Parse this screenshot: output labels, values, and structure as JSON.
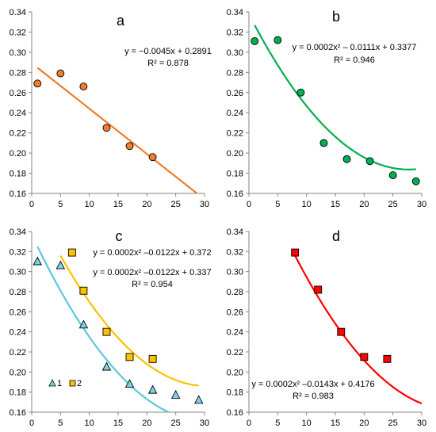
{
  "chart_data": [
    {
      "type": "scatter",
      "panel_label": "a",
      "xlim": [
        0,
        30
      ],
      "ylim": [
        0.16,
        0.34
      ],
      "x_ticks": [
        "0",
        "5",
        "10",
        "15",
        "20",
        "25",
        "30"
      ],
      "y_ticks": [
        "0.16",
        "0.18",
        "0.20",
        "0.22",
        "0.24",
        "0.26",
        "0.28",
        "0.30",
        "0.32",
        "0.34"
      ],
      "grid": false,
      "series": [
        {
          "marker": "circle",
          "color": "#ED7D31",
          "points": [
            [
              1,
              0.269
            ],
            [
              5,
              0.279
            ],
            [
              9,
              0.266
            ],
            [
              13,
              0.225
            ],
            [
              17,
              0.207
            ],
            [
              21,
              0.196
            ]
          ],
          "fit": {
            "coeffs": [
              0,
              -0.0045,
              0.2891
            ],
            "x_range": [
              1,
              29
            ],
            "color": "#ED7D31"
          }
        }
      ],
      "annotations": [
        "y = −0.0045x + 0.2891",
        "R² = 0.878"
      ]
    },
    {
      "type": "scatter",
      "panel_label": "b",
      "xlim": [
        0,
        30
      ],
      "ylim": [
        0.16,
        0.34
      ],
      "x_ticks": [
        "0",
        "5",
        "10",
        "15",
        "20",
        "25",
        "30"
      ],
      "y_ticks": [
        "0.16",
        "0.18",
        "0.20",
        "0.22",
        "0.24",
        "0.26",
        "0.28",
        "0.30",
        "0.32",
        "0.34"
      ],
      "grid": false,
      "series": [
        {
          "marker": "circle",
          "color": "#00B050",
          "points": [
            [
              1,
              0.311
            ],
            [
              5,
              0.312
            ],
            [
              9,
              0.26
            ],
            [
              13,
              0.21
            ],
            [
              17,
              0.194
            ],
            [
              21,
              0.192
            ],
            [
              25,
              0.178
            ],
            [
              29,
              0.172
            ]
          ],
          "fit": {
            "coeffs": [
              0.0002,
              -0.0111,
              0.3377
            ],
            "x_range": [
              1,
              29
            ],
            "color": "#00B050"
          }
        }
      ],
      "annotations": [
        "y = 0.0002x² – 0.0111x + 0.3377",
        "R² = 0.946"
      ]
    },
    {
      "type": "scatter",
      "panel_label": "c",
      "xlim": [
        0,
        30
      ],
      "ylim": [
        0.16,
        0.34
      ],
      "x_ticks": [
        "0",
        "5",
        "10",
        "15",
        "20",
        "25",
        "30"
      ],
      "y_ticks": [
        "0.16",
        "0.18",
        "0.20",
        "0.22",
        "0.24",
        "0.26",
        "0.28",
        "0.30",
        "0.32",
        "0.34"
      ],
      "grid": false,
      "legend": "bottom-left",
      "series": [
        {
          "name": "1",
          "marker": "triangle",
          "color": "#7FD3E6",
          "points": [
            [
              1,
              0.31
            ],
            [
              5,
              0.306
            ],
            [
              9,
              0.247
            ],
            [
              13,
              0.205
            ],
            [
              17,
              0.188
            ],
            [
              21,
              0.182
            ],
            [
              25,
              0.177
            ],
            [
              29,
              0.172
            ]
          ],
          "fit": {
            "coeffs": [
              0.0002,
              -0.0122,
              0.337
            ],
            "x_range": [
              1,
              29
            ],
            "color": "#5BC8DB"
          }
        },
        {
          "name": "2",
          "marker": "square",
          "color": "#FFC000",
          "points": [
            [
              7,
              0.319
            ],
            [
              9,
              0.281
            ],
            [
              13,
              0.24
            ],
            [
              17,
              0.215
            ],
            [
              21,
              0.213
            ]
          ],
          "fit": {
            "coeffs": [
              0.0002,
              -0.0122,
              0.372
            ],
            "x_range": [
              5,
              29
            ],
            "color": "#FFC000"
          }
        }
      ],
      "annotations": [
        "y = 0.0002x² –0.0122x + 0.372",
        "y = 0.0002x² –0.0122x + 0.337",
        "R² = 0.954"
      ]
    },
    {
      "type": "scatter",
      "panel_label": "d",
      "xlim": [
        0,
        30
      ],
      "ylim": [
        0.16,
        0.34
      ],
      "x_ticks": [
        "0",
        "5",
        "10",
        "15",
        "20",
        "25",
        "30"
      ],
      "y_ticks": [
        "0.16",
        "0.18",
        "0.20",
        "0.22",
        "0.24",
        "0.26",
        "0.28",
        "0.30",
        "0.32",
        "0.34"
      ],
      "grid": false,
      "series": [
        {
          "marker": "square",
          "color": "#FF0000",
          "points": [
            [
              8,
              0.319
            ],
            [
              12,
              0.282
            ],
            [
              16,
              0.24
            ],
            [
              20,
              0.215
            ],
            [
              24,
              0.213
            ]
          ],
          "fit": {
            "coeffs": [
              0.0002,
              -0.0143,
              0.4176
            ],
            "x_range": [
              8,
              30
            ],
            "color": "#FF0000"
          }
        }
      ],
      "annotations": [
        "y = 0.0002x² –0.0143x + 0.4176",
        "R² = 0.983"
      ]
    }
  ]
}
